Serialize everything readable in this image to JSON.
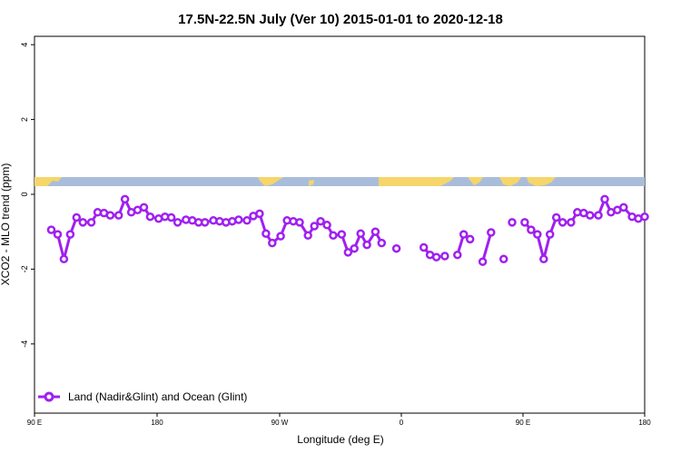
{
  "chart_data": {
    "type": "line",
    "title": "17.5N-22.5N July (Ver 10)   2015-01-01 to 2020-12-18",
    "xlabel": "Longitude (deg E)",
    "ylabel": "XCO2 - MLO trend (ppm)",
    "xlim": [
      90,
      450
    ],
    "ylim": [
      -5.8,
      4.5
    ],
    "x_ticks": [
      {
        "value": 90,
        "label": "90 E"
      },
      {
        "value": 180,
        "label": "180"
      },
      {
        "value": 270,
        "label": "90 W"
      },
      {
        "value": 360,
        "label": "0"
      },
      {
        "value": 450,
        "label": "90 E"
      },
      {
        "value": 540,
        "label": "180"
      }
    ],
    "y_ticks": [
      {
        "value": 4,
        "label": "4"
      },
      {
        "value": 2,
        "label": "2"
      },
      {
        "value": 0,
        "label": "0"
      },
      {
        "value": -2,
        "label": "-2"
      },
      {
        "value": -4,
        "label": "-4"
      }
    ],
    "legend": {
      "position": "bottom-left"
    },
    "series": [
      {
        "name": "Land (Nadir&Glint) and Ocean (Glint)",
        "color": "#a020f0",
        "segments": [
          [
            [
              0.08,
              -0.95
            ],
            [
              0.11,
              -1.07
            ],
            [
              0.14,
              -1.73
            ],
            [
              0.17,
              -1.07
            ],
            [
              0.2,
              -0.62
            ],
            [
              0.23,
              -0.75
            ],
            [
              0.27,
              -0.75
            ],
            [
              0.3,
              -0.48
            ],
            [
              0.33,
              -0.5
            ],
            [
              0.36,
              -0.56
            ],
            [
              0.4,
              -0.56
            ],
            [
              0.43,
              -0.13
            ],
            [
              0.46,
              -0.48
            ],
            [
              0.49,
              -0.42
            ],
            [
              0.52,
              -0.35
            ],
            [
              0.55,
              -0.6
            ],
            [
              0.59,
              -0.65
            ],
            [
              0.62,
              -0.6
            ],
            [
              0.65,
              -0.62
            ],
            [
              0.68,
              -0.75
            ],
            [
              0.72,
              -0.68
            ],
            [
              0.75,
              -0.7
            ],
            [
              0.78,
              -0.75
            ],
            [
              0.81,
              -0.75
            ],
            [
              0.85,
              -0.7
            ],
            [
              0.88,
              -0.72
            ],
            [
              0.91,
              -0.75
            ],
            [
              0.94,
              -0.72
            ],
            [
              0.97,
              -0.68
            ],
            [
              1.01,
              -0.7
            ],
            [
              1.04,
              -0.58
            ],
            [
              1.07,
              -0.52
            ],
            [
              1.1,
              -1.05
            ],
            [
              1.13,
              -1.3
            ],
            [
              1.17,
              -1.12
            ],
            [
              1.2,
              -0.7
            ],
            [
              1.23,
              -0.72
            ],
            [
              1.26,
              -0.75
            ],
            [
              1.3,
              -1.1
            ],
            [
              1.33,
              -0.85
            ],
            [
              1.36,
              -0.72
            ],
            [
              1.39,
              -0.82
            ],
            [
              1.42,
              -1.1
            ],
            [
              1.46,
              -1.07
            ],
            [
              1.49,
              -1.55
            ],
            [
              1.52,
              -1.45
            ],
            [
              1.55,
              -1.05
            ],
            [
              1.58,
              -1.35
            ],
            [
              1.62,
              -1.0
            ],
            [
              1.65,
              -1.3
            ]
          ],
          [
            [
              1.72,
              -1.45
            ]
          ],
          [
            [
              1.85,
              -1.42
            ],
            [
              1.88,
              -1.62
            ],
            [
              1.91,
              -1.68
            ],
            [
              1.95,
              -1.65
            ]
          ],
          [
            [
              2.01,
              -1.62
            ],
            [
              2.04,
              -1.07
            ],
            [
              2.07,
              -1.2
            ]
          ],
          [
            [
              2.13,
              -1.8
            ],
            [
              2.17,
              -1.02
            ]
          ],
          [
            [
              2.23,
              -1.73
            ]
          ],
          [
            [
              2.27,
              -0.75
            ]
          ],
          [
            [
              2.33,
              -0.75
            ],
            [
              2.36,
              -0.95
            ],
            [
              2.39,
              -1.07
            ],
            [
              2.42,
              -1.73
            ],
            [
              2.45,
              -1.07
            ],
            [
              2.48,
              -0.62
            ],
            [
              2.51,
              -0.75
            ],
            [
              2.55,
              -0.75
            ],
            [
              2.58,
              -0.48
            ],
            [
              2.61,
              -0.5
            ],
            [
              2.64,
              -0.56
            ],
            [
              2.68,
              -0.56
            ],
            [
              2.71,
              -0.13
            ],
            [
              2.74,
              -0.48
            ],
            [
              2.77,
              -0.42
            ],
            [
              2.8,
              -0.35
            ],
            [
              2.84,
              -0.6
            ],
            [
              2.87,
              -0.65
            ],
            [
              2.9,
              -0.6
            ]
          ]
        ]
      }
    ]
  }
}
